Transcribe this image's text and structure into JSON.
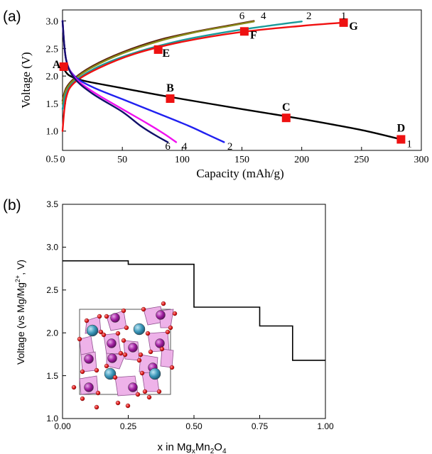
{
  "chart_data": [
    {
      "id": "a",
      "type": "line",
      "panel_label": "(a)",
      "title": "",
      "xlabel": "Capacity (mAh/g)",
      "ylabel": "Voltage (V)",
      "xlim": [
        0,
        300
      ],
      "ylim": [
        0.65,
        3.2
      ],
      "xticks": [
        0,
        50,
        100,
        150,
        200,
        250,
        300
      ],
      "yticks": [
        0.5,
        1.0,
        1.5,
        2.0,
        2.5,
        3.0
      ],
      "xtick_labels": [
        "0",
        "50",
        "100",
        "150",
        "200",
        "250",
        "300"
      ],
      "ytick_labels": [
        "0.5",
        "1.0",
        "1.5",
        "2.0",
        "2.5",
        "3.0"
      ],
      "series": [
        {
          "name": "6",
          "branch": "charge",
          "color": "#5a1a0a",
          "x": [
            0,
            3,
            10,
            25,
            50,
            80,
            110,
            140,
            160
          ],
          "y": [
            1.55,
            1.78,
            1.96,
            2.18,
            2.43,
            2.65,
            2.8,
            2.92,
            3.0
          ]
        },
        {
          "name": "4",
          "branch": "charge",
          "color": "#8a8a1a",
          "x": [
            0,
            3,
            10,
            25,
            50,
            80,
            110,
            140,
            160
          ],
          "y": [
            1.5,
            1.75,
            1.94,
            2.16,
            2.41,
            2.63,
            2.79,
            2.91,
            2.99
          ]
        },
        {
          "name": "2",
          "branch": "charge",
          "color": "#1a9a9a",
          "x": [
            0,
            3,
            10,
            30,
            60,
            100,
            140,
            175,
            200
          ],
          "y": [
            1.4,
            1.68,
            1.9,
            2.17,
            2.42,
            2.65,
            2.81,
            2.92,
            2.99
          ]
        },
        {
          "name": "1",
          "branch": "charge",
          "color": "#f01010",
          "x": [
            0,
            3,
            10,
            30,
            60,
            100,
            150,
            200,
            235
          ],
          "y": [
            1.0,
            1.6,
            1.88,
            2.14,
            2.4,
            2.62,
            2.8,
            2.91,
            2.97
          ]
        },
        {
          "name": "1",
          "branch": "discharge",
          "color": "#000000",
          "x": [
            0,
            5,
            15,
            30,
            60,
            90,
            150,
            200,
            250,
            283
          ],
          "y": [
            2.17,
            2.02,
            1.93,
            1.86,
            1.74,
            1.62,
            1.4,
            1.22,
            1.02,
            0.85
          ]
        },
        {
          "name": "2",
          "branch": "discharge",
          "color": "#2020f0",
          "x": [
            0,
            3,
            10,
            25,
            50,
            80,
            105,
            120,
            135
          ],
          "y": [
            3.0,
            2.3,
            2.0,
            1.8,
            1.58,
            1.32,
            1.1,
            0.95,
            0.8
          ]
        },
        {
          "name": "4",
          "branch": "discharge",
          "color": "#f010f0",
          "x": [
            0,
            3,
            10,
            25,
            50,
            70,
            85,
            95
          ],
          "y": [
            3.0,
            2.3,
            1.98,
            1.72,
            1.4,
            1.15,
            0.95,
            0.8
          ]
        },
        {
          "name": "6",
          "branch": "discharge",
          "color": "#10106a",
          "x": [
            0,
            3,
            10,
            25,
            50,
            65,
            78,
            88
          ],
          "y": [
            3.0,
            2.3,
            1.96,
            1.68,
            1.35,
            1.1,
            0.92,
            0.8
          ]
        }
      ],
      "markers": [
        {
          "label": "A",
          "x": 1,
          "y": 2.17
        },
        {
          "label": "B",
          "x": 90,
          "y": 1.59
        },
        {
          "label": "C",
          "x": 187,
          "y": 1.24
        },
        {
          "label": "D",
          "x": 283,
          "y": 0.85
        },
        {
          "label": "E",
          "x": 80,
          "y": 2.48
        },
        {
          "label": "F",
          "x": 152,
          "y": 2.81
        },
        {
          "label": "G",
          "x": 235,
          "y": 2.97
        }
      ],
      "marker_color": "#ee1111",
      "curve_labels": [
        {
          "text": "6",
          "x": 150,
          "y": 3.1
        },
        {
          "text": "4",
          "x": 168,
          "y": 3.1
        },
        {
          "text": "2",
          "x": 206,
          "y": 3.1
        },
        {
          "text": "1",
          "x": 235,
          "y": 3.1
        },
        {
          "text": "6",
          "x": 88,
          "y": 0.73
        },
        {
          "text": "4",
          "x": 102,
          "y": 0.73
        },
        {
          "text": "2",
          "x": 140,
          "y": 0.73
        },
        {
          "text": "1",
          "x": 290,
          "y": 0.77
        }
      ]
    },
    {
      "id": "b",
      "type": "line",
      "subtype": "step",
      "panel_label": "(b)",
      "title": "",
      "xlabel_parts": [
        "x in Mg",
        "x",
        "Mn",
        "2",
        "O",
        "4"
      ],
      "ylabel_parts": [
        "Voltage (vs Mg/Mg",
        "2+",
        ", V)"
      ],
      "xlim": [
        0.0,
        1.0
      ],
      "ylim": [
        1.0,
        3.5
      ],
      "xticks": [
        0.0,
        0.25,
        0.5,
        0.75,
        1.0
      ],
      "yticks": [
        1.0,
        1.5,
        2.0,
        2.5,
        3.0,
        3.5
      ],
      "xtick_labels": [
        "0.00",
        "0.25",
        "0.50",
        "0.75",
        "1.00"
      ],
      "ytick_labels": [
        "1.0",
        "1.5",
        "2.0",
        "2.5",
        "3.0",
        "3.5"
      ],
      "series": [
        {
          "name": "voltage profile",
          "color": "#000000",
          "x": [
            0.0,
            0.25,
            0.25,
            0.5,
            0.5,
            0.75,
            0.75,
            0.875,
            0.875,
            1.0
          ],
          "y": [
            2.84,
            2.84,
            2.8,
            2.8,
            2.3,
            2.3,
            2.08,
            2.08,
            1.68,
            1.68
          ]
        }
      ],
      "inset": "MgxMn2O4 crystal structure (pink Mn-O polyhedra, purple Mn, blue Mg, red O)"
    }
  ]
}
